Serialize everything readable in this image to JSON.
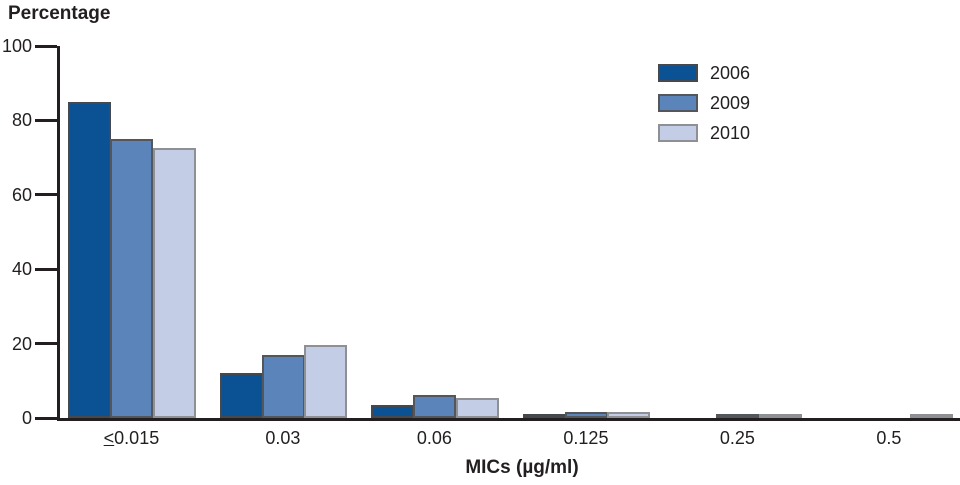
{
  "figure": {
    "y_axis_title": "Percentage",
    "x_axis_title": "MICs (µg/ml)"
  },
  "colors": {
    "axis": "#231F20",
    "text": "#231F20",
    "background": "#FFFFFF"
  },
  "chart_data": {
    "type": "bar",
    "title": "",
    "ylabel": "Percentage",
    "xlabel": "MICs (µg/ml)",
    "categories": [
      "≤0.015",
      "0.03",
      "0.06",
      "0.125",
      "0.25",
      "0.5"
    ],
    "series": [
      {
        "name": "2006",
        "color": "#0A5294",
        "border_color": "#45484C",
        "values": [
          85,
          12,
          3.5,
          0.5,
          0,
          0
        ]
      },
      {
        "name": "2009",
        "color": "#5B84BA",
        "border_color": "#53575C",
        "values": [
          75,
          17,
          6.3,
          1.5,
          1,
          0
        ]
      },
      {
        "name": "2010",
        "color": "#C3CEE6",
        "border_color": "#8E9094",
        "values": [
          72.5,
          19.5,
          5.5,
          1.5,
          1.2,
          0.3
        ]
      }
    ],
    "y_ticks": [
      0,
      20,
      40,
      60,
      80,
      100
    ],
    "ylim": [
      0,
      100
    ],
    "grid": false,
    "legend_position": "top-right",
    "legend_labels": [
      "2006",
      "2009",
      "2010"
    ]
  }
}
